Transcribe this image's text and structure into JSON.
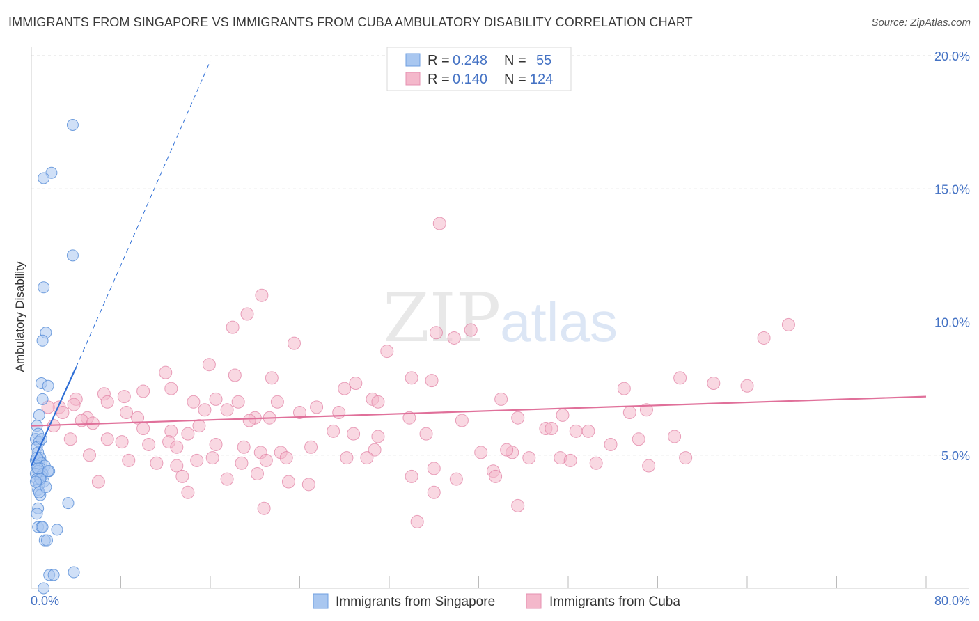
{
  "title": "IMMIGRANTS FROM SINGAPORE VS IMMIGRANTS FROM CUBA AMBULATORY DISABILITY CORRELATION CHART",
  "source": "Source: ZipAtlas.com",
  "watermark": {
    "zip": "ZIP",
    "atlas": "atlas"
  },
  "colors": {
    "blue": "#4472c4",
    "blue_fill": "#a9c7f0",
    "blue_line": "#2f6fd6",
    "pink": "#e07aa0",
    "pink_fill": "#f4b8cb",
    "pink_line": "#e0709a"
  },
  "chart_data": {
    "type": "scatter",
    "title": "IMMIGRANTS FROM SINGAPORE VS IMMIGRANTS FROM CUBA AMBULATORY DISABILITY CORRELATION CHART",
    "xlabel": "",
    "ylabel": "Ambulatory Disability",
    "xlim": [
      0,
      80
    ],
    "ylim": [
      0,
      20
    ],
    "x_tick_labels": [
      "0.0%",
      "80.0%"
    ],
    "y_ticks": [
      5,
      10,
      15,
      20
    ],
    "y_tick_labels": [
      "5.0%",
      "10.0%",
      "15.0%",
      "20.0%"
    ],
    "legend": [
      {
        "r_label": "R =",
        "r": "0.248",
        "n_label": "N =",
        "n": "55"
      },
      {
        "r_label": "R =",
        "r": "0.140",
        "n_label": "N =",
        "n": "124"
      }
    ],
    "series": [
      {
        "name": "Immigrants from Singapore",
        "trend": {
          "x0": 0.0,
          "y0": 4.6,
          "x1": 4.0,
          "y1": 8.3,
          "x_dash_end": 16.0,
          "y_dash_end": 19.8
        },
        "points": [
          [
            3.7,
            17.4
          ],
          [
            1.8,
            15.6
          ],
          [
            1.1,
            15.4
          ],
          [
            3.7,
            12.5
          ],
          [
            1.1,
            11.3
          ],
          [
            1.3,
            9.6
          ],
          [
            1.0,
            9.3
          ],
          [
            0.9,
            7.7
          ],
          [
            1.5,
            7.6
          ],
          [
            1.0,
            7.1
          ],
          [
            0.7,
            6.5
          ],
          [
            0.5,
            6.1
          ],
          [
            0.6,
            5.8
          ],
          [
            0.4,
            5.6
          ],
          [
            0.7,
            5.5
          ],
          [
            0.5,
            5.3
          ],
          [
            0.6,
            5.1
          ],
          [
            0.8,
            4.9
          ],
          [
            0.4,
            4.8
          ],
          [
            0.7,
            4.8
          ],
          [
            0.9,
            4.7
          ],
          [
            0.5,
            4.6
          ],
          [
            1.2,
            4.6
          ],
          [
            0.8,
            4.5
          ],
          [
            1.6,
            4.4
          ],
          [
            0.6,
            4.4
          ],
          [
            1.0,
            4.3
          ],
          [
            0.4,
            4.3
          ],
          [
            0.9,
            4.2
          ],
          [
            0.5,
            4.1
          ],
          [
            1.1,
            4.0
          ],
          [
            0.7,
            3.9
          ],
          [
            0.6,
            3.7
          ],
          [
            0.8,
            3.5
          ],
          [
            3.3,
            3.2
          ],
          [
            0.6,
            3.0
          ],
          [
            0.5,
            2.8
          ],
          [
            0.6,
            2.3
          ],
          [
            0.9,
            2.3
          ],
          [
            1.0,
            2.3
          ],
          [
            2.3,
            2.2
          ],
          [
            1.2,
            1.8
          ],
          [
            1.4,
            1.8
          ],
          [
            1.6,
            0.5
          ],
          [
            2.0,
            0.5
          ],
          [
            3.8,
            0.6
          ],
          [
            1.1,
            0.0
          ],
          [
            0.8,
            4.1
          ],
          [
            0.7,
            3.6
          ],
          [
            0.5,
            4.9
          ],
          [
            1.3,
            3.8
          ],
          [
            0.9,
            5.6
          ],
          [
            0.6,
            4.5
          ],
          [
            1.5,
            4.4
          ],
          [
            0.4,
            4.0
          ]
        ]
      },
      {
        "name": "Immigrants from Cuba",
        "trend": {
          "x0": 0.0,
          "y0": 6.1,
          "x1": 80.0,
          "y1": 7.2
        },
        "points": [
          [
            36.5,
            13.7
          ],
          [
            20.6,
            11.0
          ],
          [
            19.3,
            10.3
          ],
          [
            18.0,
            9.8
          ],
          [
            36.2,
            9.6
          ],
          [
            39.3,
            9.7
          ],
          [
            67.7,
            9.9
          ],
          [
            65.5,
            9.4
          ],
          [
            23.5,
            9.2
          ],
          [
            37.8,
            9.4
          ],
          [
            31.8,
            8.9
          ],
          [
            12.0,
            8.1
          ],
          [
            15.9,
            8.4
          ],
          [
            18.2,
            8.0
          ],
          [
            21.5,
            7.9
          ],
          [
            29.0,
            7.7
          ],
          [
            34.0,
            7.9
          ],
          [
            35.8,
            7.8
          ],
          [
            28.0,
            7.5
          ],
          [
            42.0,
            7.1
          ],
          [
            58.0,
            7.9
          ],
          [
            61.0,
            7.7
          ],
          [
            64.0,
            7.6
          ],
          [
            53.0,
            7.5
          ],
          [
            10.0,
            7.4
          ],
          [
            12.5,
            7.5
          ],
          [
            6.5,
            7.3
          ],
          [
            8.3,
            7.2
          ],
          [
            4.0,
            7.1
          ],
          [
            6.8,
            7.0
          ],
          [
            14.5,
            7.0
          ],
          [
            16.5,
            7.1
          ],
          [
            18.5,
            7.0
          ],
          [
            22.0,
            7.0
          ],
          [
            25.5,
            6.8
          ],
          [
            30.5,
            7.1
          ],
          [
            31.0,
            7.0
          ],
          [
            2.5,
            6.8
          ],
          [
            3.8,
            6.9
          ],
          [
            1.5,
            6.8
          ],
          [
            5.0,
            6.4
          ],
          [
            8.5,
            6.6
          ],
          [
            9.5,
            6.4
          ],
          [
            15.5,
            6.7
          ],
          [
            17.5,
            6.7
          ],
          [
            20.0,
            6.4
          ],
          [
            24.0,
            6.6
          ],
          [
            27.5,
            6.6
          ],
          [
            33.8,
            6.4
          ],
          [
            38.5,
            6.3
          ],
          [
            43.5,
            6.4
          ],
          [
            46.0,
            6.0
          ],
          [
            47.5,
            6.5
          ],
          [
            53.5,
            6.6
          ],
          [
            55.0,
            6.7
          ],
          [
            2.0,
            6.1
          ],
          [
            4.5,
            6.3
          ],
          [
            5.5,
            6.2
          ],
          [
            10.0,
            6.0
          ],
          [
            12.5,
            5.9
          ],
          [
            14.0,
            5.8
          ],
          [
            15.0,
            6.1
          ],
          [
            19.5,
            6.3
          ],
          [
            21.3,
            6.4
          ],
          [
            27.0,
            5.9
          ],
          [
            28.8,
            5.8
          ],
          [
            31.0,
            5.7
          ],
          [
            35.3,
            5.8
          ],
          [
            46.5,
            6.0
          ],
          [
            48.7,
            5.9
          ],
          [
            49.8,
            5.9
          ],
          [
            3.5,
            5.6
          ],
          [
            6.8,
            5.6
          ],
          [
            8.1,
            5.5
          ],
          [
            10.5,
            5.4
          ],
          [
            12.3,
            5.5
          ],
          [
            13.0,
            5.3
          ],
          [
            16.5,
            5.4
          ],
          [
            19.0,
            5.3
          ],
          [
            20.5,
            5.1
          ],
          [
            22.3,
            5.1
          ],
          [
            25.0,
            5.3
          ],
          [
            30.7,
            5.2
          ],
          [
            40.2,
            5.1
          ],
          [
            43.0,
            5.1
          ],
          [
            51.8,
            5.4
          ],
          [
            54.3,
            5.6
          ],
          [
            57.5,
            5.7
          ],
          [
            5.2,
            5.0
          ],
          [
            8.7,
            4.8
          ],
          [
            11.2,
            4.7
          ],
          [
            13.0,
            4.6
          ],
          [
            14.8,
            4.8
          ],
          [
            16.2,
            4.9
          ],
          [
            18.8,
            4.7
          ],
          [
            21.0,
            4.8
          ],
          [
            22.8,
            4.9
          ],
          [
            28.2,
            4.9
          ],
          [
            30.0,
            4.9
          ],
          [
            36.0,
            4.5
          ],
          [
            41.3,
            4.4
          ],
          [
            47.3,
            4.9
          ],
          [
            48.2,
            4.8
          ],
          [
            50.5,
            4.7
          ],
          [
            55.2,
            4.6
          ],
          [
            6.0,
            4.0
          ],
          [
            13.5,
            4.2
          ],
          [
            17.5,
            4.1
          ],
          [
            20.2,
            4.3
          ],
          [
            23.0,
            4.0
          ],
          [
            24.8,
            3.9
          ],
          [
            34.0,
            4.2
          ],
          [
            36.0,
            3.6
          ],
          [
            38.0,
            4.1
          ],
          [
            41.5,
            4.2
          ],
          [
            14.0,
            3.6
          ],
          [
            20.8,
            3.0
          ],
          [
            43.5,
            3.1
          ],
          [
            34.5,
            2.5
          ],
          [
            42.5,
            5.2
          ],
          [
            58.5,
            4.9
          ],
          [
            44.5,
            4.9
          ],
          [
            2.8,
            6.6
          ]
        ]
      }
    ]
  },
  "legend_bottom": [
    "Immigrants from Singapore",
    "Immigrants from Cuba"
  ]
}
